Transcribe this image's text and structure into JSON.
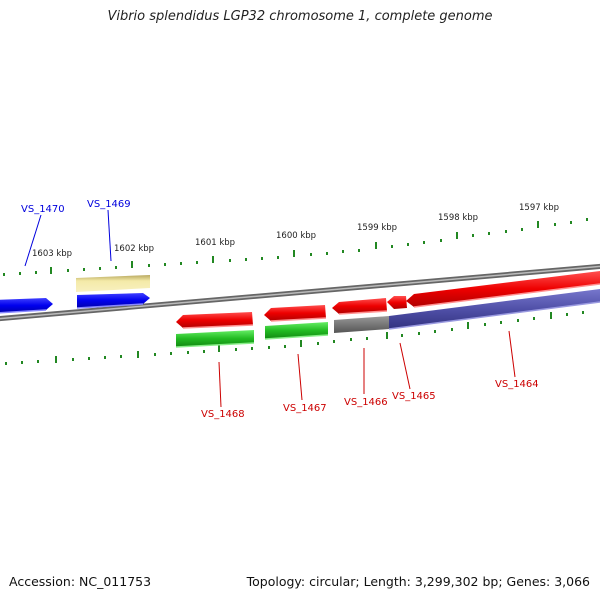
{
  "header": {
    "title": "Vibrio splendidus LGP32 chromosome 1, complete genome"
  },
  "footer": {
    "accession": "Accession: NC_011753",
    "summary": "Topology: circular; Length: 3,299,302 bp; Genes: 3,066"
  },
  "ruler": {
    "ticks": [
      "1603 kbp",
      "1602 kbp",
      "1601 kbp",
      "1600 kbp",
      "1599 kbp",
      "1598 kbp",
      "1597 kbp"
    ]
  },
  "genes": {
    "VS_1470": {
      "label": "VS_1470",
      "strand": "+",
      "color": "#0000ee"
    },
    "VS_1469": {
      "label": "VS_1469",
      "strand": "+",
      "color": "#0000ee"
    },
    "VS_1468": {
      "label": "VS_1468",
      "strand": "-",
      "color": "#cc0000"
    },
    "VS_1467": {
      "label": "VS_1467",
      "strand": "-",
      "color": "#cc0000"
    },
    "VS_1466": {
      "label": "VS_1466",
      "strand": "-",
      "color": "#cc0000"
    },
    "VS_1465": {
      "label": "VS_1465",
      "strand": "-",
      "color": "#cc0000"
    },
    "VS_1464": {
      "label": "VS_1464",
      "strand": "-",
      "color": "#cc0000"
    }
  },
  "colors": {
    "forward_gene": "#0000ee",
    "reverse_gene": "#ee0000",
    "cds_green": "#22bb22",
    "pseudo_yellow": "#f0e6a0",
    "rna_grey": "#777777",
    "feature_purple": "#5555aa",
    "backbone": "#888888",
    "tick": "#228822"
  }
}
